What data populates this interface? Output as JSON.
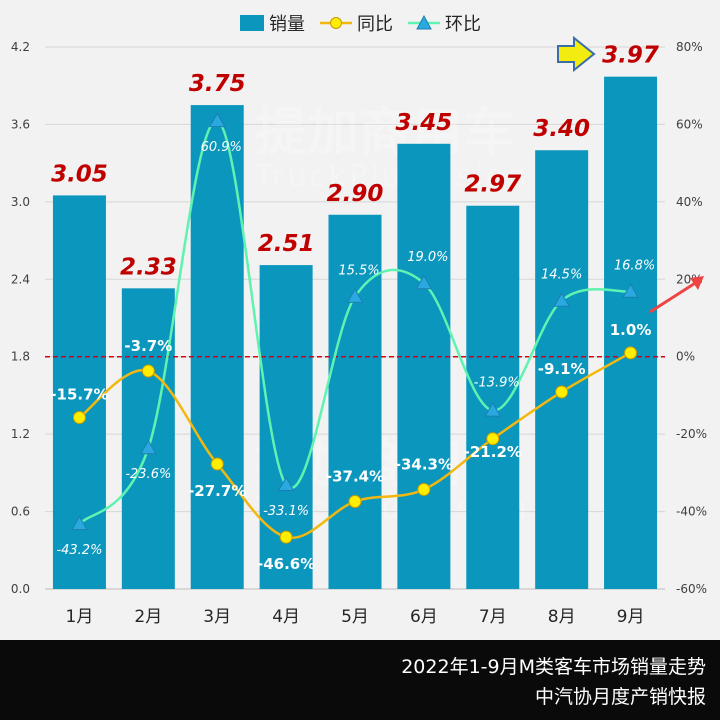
{
  "chart_data": {
    "type": "bar+line",
    "categories": [
      "1月",
      "2月",
      "3月",
      "4月",
      "5月",
      "6月",
      "7月",
      "8月",
      "9月"
    ],
    "legend": [
      "销量",
      "同比",
      "环比"
    ],
    "series": [
      {
        "name": "销量",
        "type": "bar",
        "axis": "left",
        "values": [
          3.05,
          2.33,
          3.75,
          2.51,
          2.9,
          3.45,
          2.97,
          3.4,
          3.97
        ],
        "labels": [
          "3.05",
          "2.33",
          "3.75",
          "2.51",
          "2.90",
          "3.45",
          "2.97",
          "3.40",
          "3.97"
        ]
      },
      {
        "name": "同比",
        "type": "line",
        "axis": "right",
        "values": [
          -15.7,
          -3.7,
          -27.7,
          -46.6,
          -37.4,
          -34.3,
          -21.2,
          -9.1,
          1.0
        ],
        "labels": [
          "-15.7%",
          "-3.7%",
          "-27.7%",
          "-46.6%",
          "-37.4%",
          "-34.3%",
          "-21.2%",
          "-9.1%",
          "1.0%"
        ]
      },
      {
        "name": "环比",
        "type": "line",
        "axis": "right",
        "values": [
          -43.2,
          -23.6,
          60.9,
          -33.1,
          15.5,
          19.0,
          -13.9,
          14.5,
          16.8
        ],
        "labels": [
          "-43.2%",
          "-23.6%",
          "60.9%",
          "-33.1%",
          "15.5%",
          "19.0%",
          "-13.9%",
          "14.5%",
          "16.8%"
        ]
      }
    ],
    "left_axis": {
      "min": 0,
      "max": 4.2,
      "ticks": [
        "0.0",
        "0.6",
        "1.2",
        "1.8",
        "2.4",
        "3.0",
        "3.6",
        "4.2"
      ]
    },
    "right_axis": {
      "min": -60,
      "max": 80,
      "ticks": [
        "-60%",
        "-40%",
        "-20%",
        "0%",
        "20%",
        "40%",
        "60%",
        "80%"
      ]
    },
    "reference_line": {
      "axis": "right",
      "value": 0,
      "style": "dashed",
      "color": "#d0021b"
    },
    "colors": {
      "bar": "#0b97bd",
      "yoy_line": "#f2b80f",
      "yoy_marker": "#ffee00",
      "mom_line": "#5ff2b0",
      "mom_marker": "#29a9e0",
      "value_label": "#c00000",
      "arrow": "#f2ec10"
    },
    "watermark": {
      "cn": "提加商用车",
      "en": "TruckPlusVision"
    }
  },
  "footer": {
    "title": "2022年1-9月M类客车市场销量走势",
    "source": "中汽协月度产销快报"
  }
}
